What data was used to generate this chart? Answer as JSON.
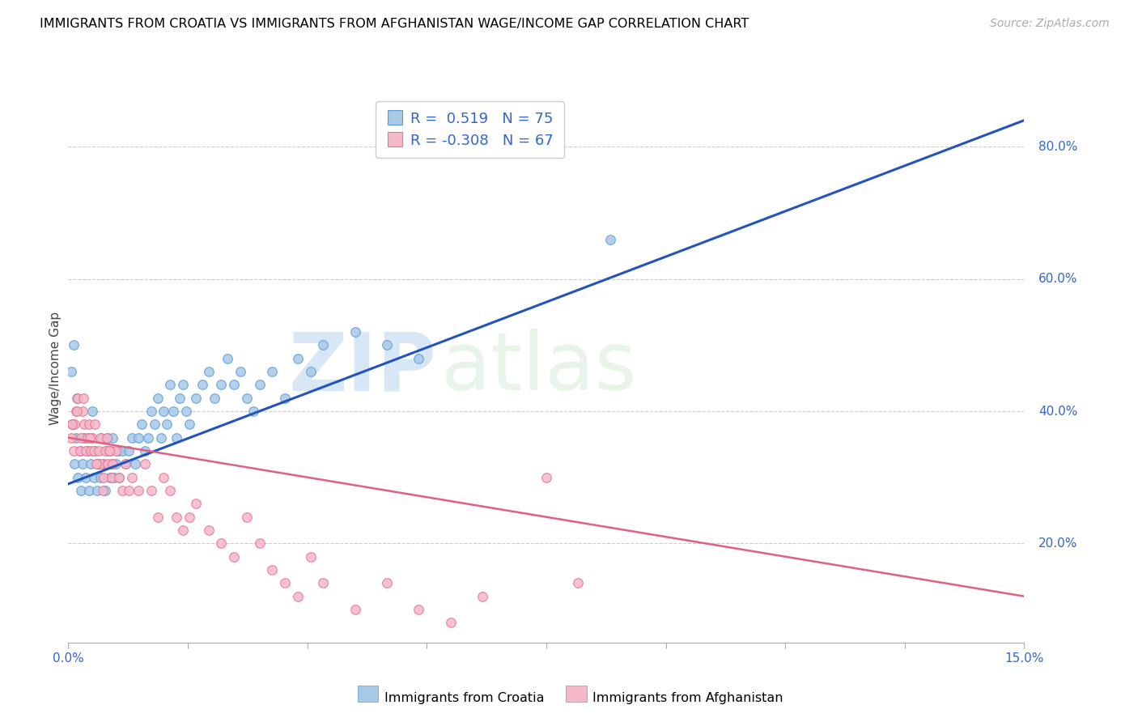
{
  "title": "IMMIGRANTS FROM CROATIA VS IMMIGRANTS FROM AFGHANISTAN WAGE/INCOME GAP CORRELATION CHART",
  "source": "Source: ZipAtlas.com",
  "ylabel": "Wage/Income Gap",
  "xmin": 0.0,
  "xmax": 15.0,
  "ymin": 5.0,
  "ymax": 88.0,
  "yticks_right": [
    20.0,
    40.0,
    60.0,
    80.0
  ],
  "croatia_color": "#a8c8e8",
  "afghanistan_color": "#f5b8c8",
  "croatia_edge_color": "#5b9bd5",
  "afghanistan_edge_color": "#e87090",
  "trendline_croatia_color": "#2255bb",
  "trendline_afghanistan_color": "#e06080",
  "watermark_zip": "ZIP",
  "watermark_atlas": "atlas",
  "legend_R_croatia": "0.519",
  "legend_N_croatia": "75",
  "legend_R_afghanistan": "-0.308",
  "legend_N_afghanistan": "67",
  "label_croatia": "Immigrants from Croatia",
  "label_afghanistan": "Immigrants from Afghanistan",
  "croatia_scatter": [
    [
      0.05,
      46
    ],
    [
      0.08,
      50
    ],
    [
      0.1,
      32
    ],
    [
      0.12,
      36
    ],
    [
      0.15,
      30
    ],
    [
      0.18,
      34
    ],
    [
      0.2,
      28
    ],
    [
      0.22,
      32
    ],
    [
      0.25,
      36
    ],
    [
      0.28,
      30
    ],
    [
      0.3,
      34
    ],
    [
      0.32,
      28
    ],
    [
      0.35,
      32
    ],
    [
      0.38,
      40
    ],
    [
      0.4,
      30
    ],
    [
      0.42,
      34
    ],
    [
      0.45,
      28
    ],
    [
      0.48,
      32
    ],
    [
      0.5,
      30
    ],
    [
      0.52,
      36
    ],
    [
      0.55,
      32
    ],
    [
      0.58,
      28
    ],
    [
      0.6,
      34
    ],
    [
      0.62,
      36
    ],
    [
      0.65,
      30
    ],
    [
      0.68,
      32
    ],
    [
      0.7,
      36
    ],
    [
      0.72,
      30
    ],
    [
      0.75,
      32
    ],
    [
      0.78,
      34
    ],
    [
      0.8,
      30
    ],
    [
      0.85,
      34
    ],
    [
      0.9,
      32
    ],
    [
      0.95,
      34
    ],
    [
      1.0,
      36
    ],
    [
      1.05,
      32
    ],
    [
      1.1,
      36
    ],
    [
      1.15,
      38
    ],
    [
      1.2,
      34
    ],
    [
      1.25,
      36
    ],
    [
      1.3,
      40
    ],
    [
      1.35,
      38
    ],
    [
      1.4,
      42
    ],
    [
      1.45,
      36
    ],
    [
      1.5,
      40
    ],
    [
      1.55,
      38
    ],
    [
      1.6,
      44
    ],
    [
      1.65,
      40
    ],
    [
      1.7,
      36
    ],
    [
      1.75,
      42
    ],
    [
      1.8,
      44
    ],
    [
      1.85,
      40
    ],
    [
      1.9,
      38
    ],
    [
      2.0,
      42
    ],
    [
      2.1,
      44
    ],
    [
      2.2,
      46
    ],
    [
      2.3,
      42
    ],
    [
      2.4,
      44
    ],
    [
      2.5,
      48
    ],
    [
      2.6,
      44
    ],
    [
      2.7,
      46
    ],
    [
      2.8,
      42
    ],
    [
      2.9,
      40
    ],
    [
      3.0,
      44
    ],
    [
      3.2,
      46
    ],
    [
      3.4,
      42
    ],
    [
      3.6,
      48
    ],
    [
      3.8,
      46
    ],
    [
      4.0,
      50
    ],
    [
      4.5,
      52
    ],
    [
      5.0,
      50
    ],
    [
      5.5,
      48
    ],
    [
      0.06,
      38
    ],
    [
      0.14,
      42
    ],
    [
      8.5,
      66
    ]
  ],
  "afghanistan_scatter": [
    [
      0.05,
      36
    ],
    [
      0.08,
      34
    ],
    [
      0.1,
      38
    ],
    [
      0.12,
      40
    ],
    [
      0.15,
      42
    ],
    [
      0.18,
      34
    ],
    [
      0.2,
      36
    ],
    [
      0.22,
      40
    ],
    [
      0.25,
      38
    ],
    [
      0.28,
      34
    ],
    [
      0.3,
      36
    ],
    [
      0.32,
      38
    ],
    [
      0.35,
      34
    ],
    [
      0.38,
      36
    ],
    [
      0.4,
      34
    ],
    [
      0.42,
      38
    ],
    [
      0.45,
      32
    ],
    [
      0.48,
      34
    ],
    [
      0.5,
      36
    ],
    [
      0.52,
      32
    ],
    [
      0.55,
      30
    ],
    [
      0.58,
      34
    ],
    [
      0.6,
      36
    ],
    [
      0.62,
      32
    ],
    [
      0.65,
      34
    ],
    [
      0.68,
      30
    ],
    [
      0.7,
      32
    ],
    [
      0.75,
      34
    ],
    [
      0.8,
      30
    ],
    [
      0.85,
      28
    ],
    [
      0.9,
      32
    ],
    [
      0.95,
      28
    ],
    [
      1.0,
      30
    ],
    [
      1.1,
      28
    ],
    [
      1.2,
      32
    ],
    [
      1.3,
      28
    ],
    [
      1.4,
      24
    ],
    [
      1.5,
      30
    ],
    [
      1.6,
      28
    ],
    [
      1.7,
      24
    ],
    [
      1.8,
      22
    ],
    [
      1.9,
      24
    ],
    [
      2.0,
      26
    ],
    [
      2.2,
      22
    ],
    [
      2.4,
      20
    ],
    [
      2.6,
      18
    ],
    [
      2.8,
      24
    ],
    [
      3.0,
      20
    ],
    [
      3.2,
      16
    ],
    [
      3.4,
      14
    ],
    [
      3.6,
      12
    ],
    [
      3.8,
      18
    ],
    [
      4.0,
      14
    ],
    [
      4.5,
      10
    ],
    [
      5.0,
      14
    ],
    [
      5.5,
      10
    ],
    [
      6.0,
      8
    ],
    [
      6.5,
      12
    ],
    [
      0.06,
      38
    ],
    [
      0.14,
      40
    ],
    [
      0.24,
      42
    ],
    [
      0.34,
      36
    ],
    [
      0.44,
      32
    ],
    [
      0.54,
      28
    ],
    [
      0.64,
      34
    ],
    [
      7.5,
      30
    ],
    [
      8.0,
      14
    ]
  ],
  "croatia_trend_x": [
    0.0,
    15.0
  ],
  "croatia_trend_y": [
    29.0,
    84.0
  ],
  "afghanistan_trend_x": [
    0.0,
    15.0
  ],
  "afghanistan_trend_y": [
    36.0,
    12.0
  ]
}
